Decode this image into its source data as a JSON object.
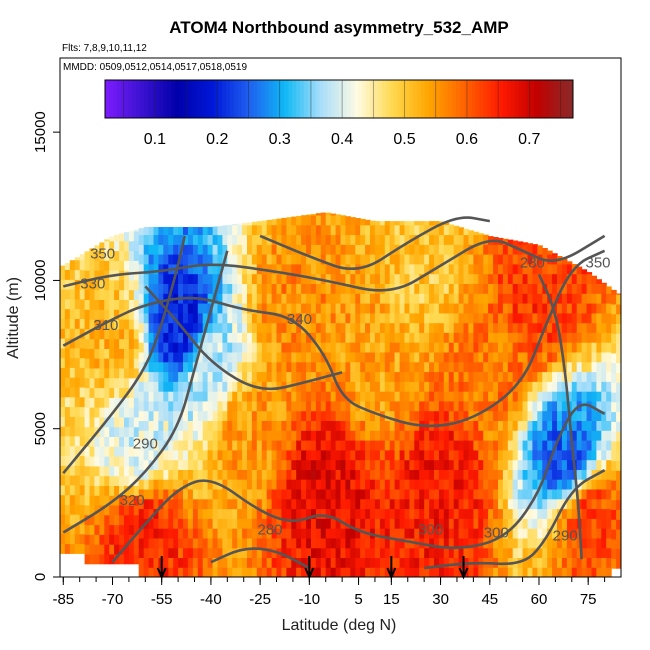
{
  "title": "ATOM4 Northbound asymmetry_532_AMP",
  "flights_label": "Flts: 7,8,9,10,11,12",
  "dates_label": "MMDD: 0509,0512,0514,0517,0518,0519",
  "colors": {
    "scale": [
      "#7e1cff",
      "#3c12d2",
      "#0000aa",
      "#0018d8",
      "#1f5ff0",
      "#10b8f5",
      "#a9defa",
      "#fffbe3",
      "#ffd84d",
      "#ffa500",
      "#ff6200",
      "#ff1a00",
      "#c20000",
      "#8a2a2a"
    ],
    "contour": "#555555"
  },
  "chart_data": {
    "type": "heatmap",
    "title": "ATOM4 Northbound asymmetry_532_AMP",
    "xlabel": "Latitude (deg N)",
    "ylabel": "Altitude (m)",
    "xlim": [
      -85,
      85
    ],
    "ylim": [
      0,
      17500
    ],
    "x_ticks": [
      "-85",
      "-70",
      "-55",
      "-40",
      "-25",
      "-10",
      "5",
      "15",
      "30",
      "45",
      "60",
      "75"
    ],
    "y_ticks": [
      "0",
      "5000",
      "10000",
      "15000"
    ],
    "colorbar": {
      "range": [
        0.02,
        0.77
      ],
      "ticks": [
        "0.1",
        "0.2",
        "0.3",
        "0.4",
        "0.5",
        "0.6",
        "0.7"
      ]
    },
    "contour_labels": [
      "350",
      "330",
      "310",
      "340",
      "290",
      "320",
      "280",
      "300",
      "300",
      "290",
      "280",
      "350"
    ],
    "flight_arrows_latitude": [
      -55,
      -10,
      15,
      37
    ],
    "data_coverage_top_altitude": [
      {
        "lat": -85,
        "alt": 10500
      },
      {
        "lat": -70,
        "alt": 11500
      },
      {
        "lat": -60,
        "alt": 11800
      },
      {
        "lat": -40,
        "alt": 11800
      },
      {
        "lat": -25,
        "alt": 12000
      },
      {
        "lat": -5,
        "alt": 12300
      },
      {
        "lat": 10,
        "alt": 12000
      },
      {
        "lat": 30,
        "alt": 12000
      },
      {
        "lat": 45,
        "alt": 11500
      },
      {
        "lat": 60,
        "alt": 11200
      },
      {
        "lat": 75,
        "alt": 10300
      },
      {
        "lat": 85,
        "alt": 9500
      }
    ],
    "approximate_values": [
      {
        "lat": -70,
        "alt": 8000,
        "value": 0.52
      },
      {
        "lat": -62,
        "alt": 4500,
        "value": 0.4
      },
      {
        "lat": -60,
        "alt": 1500,
        "value": 0.65
      },
      {
        "lat": -50,
        "alt": 8500,
        "value": 0.2
      },
      {
        "lat": -40,
        "alt": 7000,
        "value": 0.38
      },
      {
        "lat": -30,
        "alt": 5000,
        "value": 0.55
      },
      {
        "lat": -15,
        "alt": 9000,
        "value": 0.56
      },
      {
        "lat": -5,
        "alt": 3000,
        "value": 0.68
      },
      {
        "lat": 10,
        "alt": 7000,
        "value": 0.54
      },
      {
        "lat": 25,
        "alt": 10500,
        "value": 0.5
      },
      {
        "lat": 30,
        "alt": 3000,
        "value": 0.66
      },
      {
        "lat": 45,
        "alt": 7000,
        "value": 0.58
      },
      {
        "lat": 60,
        "alt": 9500,
        "value": 0.63
      },
      {
        "lat": 68,
        "alt": 4000,
        "value": 0.25
      },
      {
        "lat": 75,
        "alt": 2000,
        "value": 0.62
      }
    ]
  }
}
